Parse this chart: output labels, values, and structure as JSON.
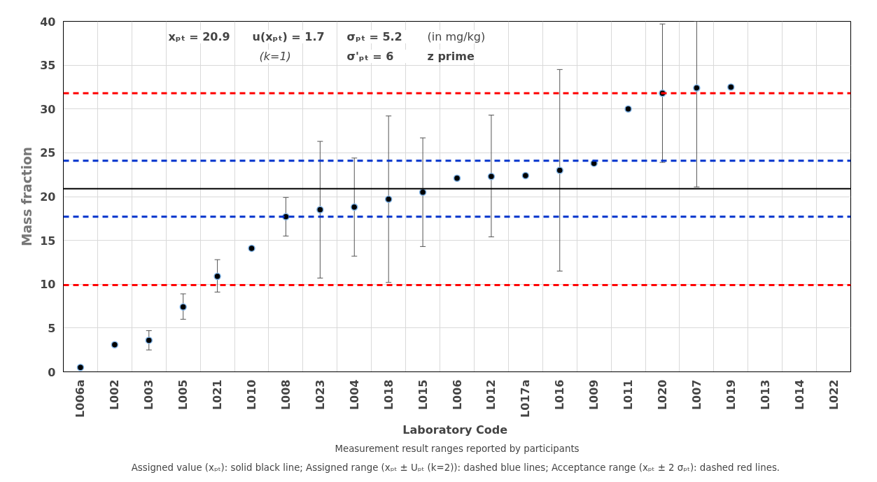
{
  "chart_data": {
    "type": "scatter",
    "xlabel": "Laboratory  Code",
    "ylabel": "Mass fraction",
    "categories": [
      "L006a",
      "L002",
      "L003",
      "L005",
      "L021",
      "L010",
      "L008",
      "L023",
      "L004",
      "L018",
      "L015",
      "L006",
      "L012",
      "L017a",
      "L016",
      "L009",
      "L011",
      "L020",
      "L007",
      "L019",
      "L013",
      "L014",
      "L022"
    ],
    "series": [
      {
        "color": "#000000",
        "values": [
          0.5,
          3.1,
          3.6,
          7.4,
          10.9,
          14.1,
          17.7,
          18.5,
          18.8,
          19.7,
          20.5,
          22.1,
          22.3,
          22.4,
          23.0,
          23.8,
          30.0,
          31.8,
          32.4,
          32.5,
          null,
          null,
          null
        ],
        "errors": [
          null,
          null,
          [
            2.5,
            4.7
          ],
          [
            6.0,
            8.9
          ],
          [
            9.1,
            12.8
          ],
          null,
          [
            15.5,
            19.9
          ],
          [
            10.7,
            26.3
          ],
          [
            13.2,
            24.4
          ],
          [
            10.2,
            29.2
          ],
          [
            14.3,
            26.7
          ],
          null,
          [
            15.4,
            29.3
          ],
          null,
          [
            11.5,
            34.5
          ],
          null,
          null,
          [
            23.9,
            39.7
          ],
          [
            21.1,
            40
          ],
          null,
          null,
          null,
          null
        ]
      }
    ],
    "marker": "circle",
    "grid": true,
    "ylim": [
      0,
      40
    ],
    "yticks": [
      0,
      5,
      10,
      15,
      20,
      25,
      30,
      35,
      40
    ],
    "ref_lines": [
      {
        "axis": "y",
        "value": 20.9,
        "color": "#000000",
        "line_style": "solid"
      },
      {
        "axis": "y",
        "value": 24.1,
        "color": "#0033cc",
        "line_style": "dashed"
      },
      {
        "axis": "y",
        "value": 17.7,
        "color": "#0033cc",
        "line_style": "dashed"
      },
      {
        "axis": "y",
        "value": 31.8,
        "color": "#ff0000",
        "line_style": "dashed"
      },
      {
        "axis": "y",
        "value": 9.9,
        "color": "#ff0000",
        "line_style": "dashed"
      }
    ],
    "annotations": [
      "xₚₜ = 20.9",
      "u(xₚₜ) =   1.7",
      "σₚₜ =      5.2",
      "(in mg/kg)",
      "(k=1)",
      "σ'ₚₜ =     6",
      "z prime",
      "Measurement result ranges reported by participants",
      "Assigned value (xₚₜ): solid black line; Assigned range (xₚₜ ± Uₚₜ (k=2)): dashed blue lines;  Acceptance range (xₚₜ ± 2 σₚₜ): dashed red lines."
    ]
  }
}
